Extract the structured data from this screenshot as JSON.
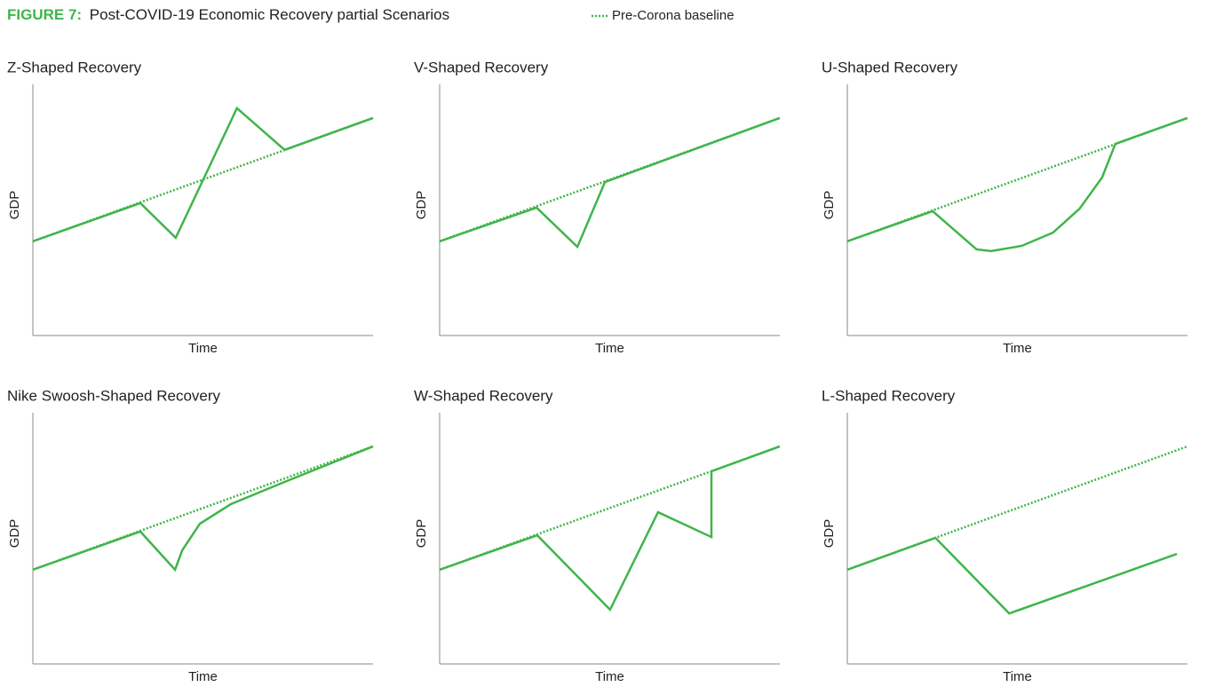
{
  "figure": {
    "label": "FIGURE 7:",
    "title": "Post-COVID-19 Economic Recovery partial Scenarios",
    "legend": "Pre-Corona baseline",
    "color": "#3fb54a"
  },
  "chart_data": [
    {
      "type": "line",
      "title": "Z-Shaped Recovery",
      "x_label": "Time",
      "y_label": "GDP",
      "xlim": [
        0,
        100
      ],
      "ylim": [
        0,
        100
      ],
      "series": [
        {
          "style": "dotted",
          "color": "#3fb54a",
          "x": [
            0,
            100
          ],
          "values": [
            37.5,
            86.6
          ]
        },
        {
          "style": "solid",
          "color": "#3fb54a",
          "x": [
            0,
            31.6,
            42,
            60,
            74,
            100
          ],
          "values": [
            37.5,
            52.7,
            38.9,
            90.5,
            73.9,
            86.6
          ]
        }
      ]
    },
    {
      "type": "line",
      "title": "V-Shaped Recovery",
      "x_label": "Time",
      "y_label": "GDP",
      "xlim": [
        0,
        100
      ],
      "ylim": [
        0,
        100
      ],
      "series": [
        {
          "style": "dotted",
          "color": "#3fb54a",
          "x": [
            0,
            100
          ],
          "values": [
            37.5,
            86.6
          ]
        },
        {
          "style": "solid",
          "color": "#3fb54a",
          "x": [
            0,
            28.5,
            40.5,
            48.6,
            100
          ],
          "values": [
            37.5,
            50.9,
            35.3,
            61.1,
            86.6
          ]
        }
      ]
    },
    {
      "type": "line",
      "title": "U-Shaped Recovery",
      "x_label": "Time",
      "y_label": "GDP",
      "xlim": [
        0,
        100
      ],
      "ylim": [
        0,
        100
      ],
      "series": [
        {
          "style": "dotted",
          "color": "#3fb54a",
          "x": [
            0,
            100
          ],
          "values": [
            37.5,
            86.6
          ]
        },
        {
          "style": "solid",
          "color": "#3fb54a",
          "x": [
            0,
            25.1,
            38,
            42.3,
            51.3,
            60.5,
            68.3,
            74.9,
            78.8,
            100
          ],
          "values": [
            37.5,
            49.5,
            34.3,
            33.6,
            35.7,
            41,
            50.5,
            62.9,
            76.3,
            86.6
          ]
        }
      ]
    },
    {
      "type": "line",
      "title": "Nike Swoosh-Shaped Recovery",
      "x_label": "Time",
      "y_label": "GDP",
      "xlim": [
        0,
        100
      ],
      "ylim": [
        0,
        100
      ],
      "series": [
        {
          "style": "dotted",
          "color": "#3fb54a",
          "x": [
            0,
            100
          ],
          "values": [
            37.5,
            86.6
          ]
        },
        {
          "style": "solid",
          "color": "#3fb54a",
          "x": [
            0,
            31.6,
            41.8,
            43.9,
            49.1,
            58.2,
            73.9,
            100
          ],
          "values": [
            37.5,
            52.7,
            37.5,
            45.2,
            55.8,
            63.6,
            72.4,
            86.6
          ]
        }
      ]
    },
    {
      "type": "line",
      "title": "W-Shaped Recovery",
      "x_label": "Time",
      "y_label": "GDP",
      "xlim": [
        0,
        100
      ],
      "ylim": [
        0,
        100
      ],
      "series": [
        {
          "style": "dotted",
          "color": "#3fb54a",
          "x": [
            0,
            100
          ],
          "values": [
            37.5,
            86.6
          ]
        },
        {
          "style": "solid",
          "color": "#3fb54a",
          "x": [
            0,
            28.7,
            50.1,
            64.2,
            79.9,
            79.9,
            100
          ],
          "values": [
            37.5,
            51.2,
            21.6,
            60.4,
            50.5,
            76.7,
            86.6
          ]
        }
      ]
    },
    {
      "type": "line",
      "title": "L-Shaped Recovery",
      "x_label": "Time",
      "y_label": "GDP",
      "xlim": [
        0,
        100
      ],
      "ylim": [
        0,
        100
      ],
      "series": [
        {
          "style": "dotted",
          "color": "#3fb54a",
          "x": [
            0,
            100
          ],
          "values": [
            37.5,
            86.6
          ]
        },
        {
          "style": "solid",
          "color": "#3fb54a",
          "x": [
            0,
            25.9,
            47.6,
            96.9
          ],
          "values": [
            37.5,
            50.2,
            20.1,
            43.8
          ]
        }
      ]
    }
  ]
}
